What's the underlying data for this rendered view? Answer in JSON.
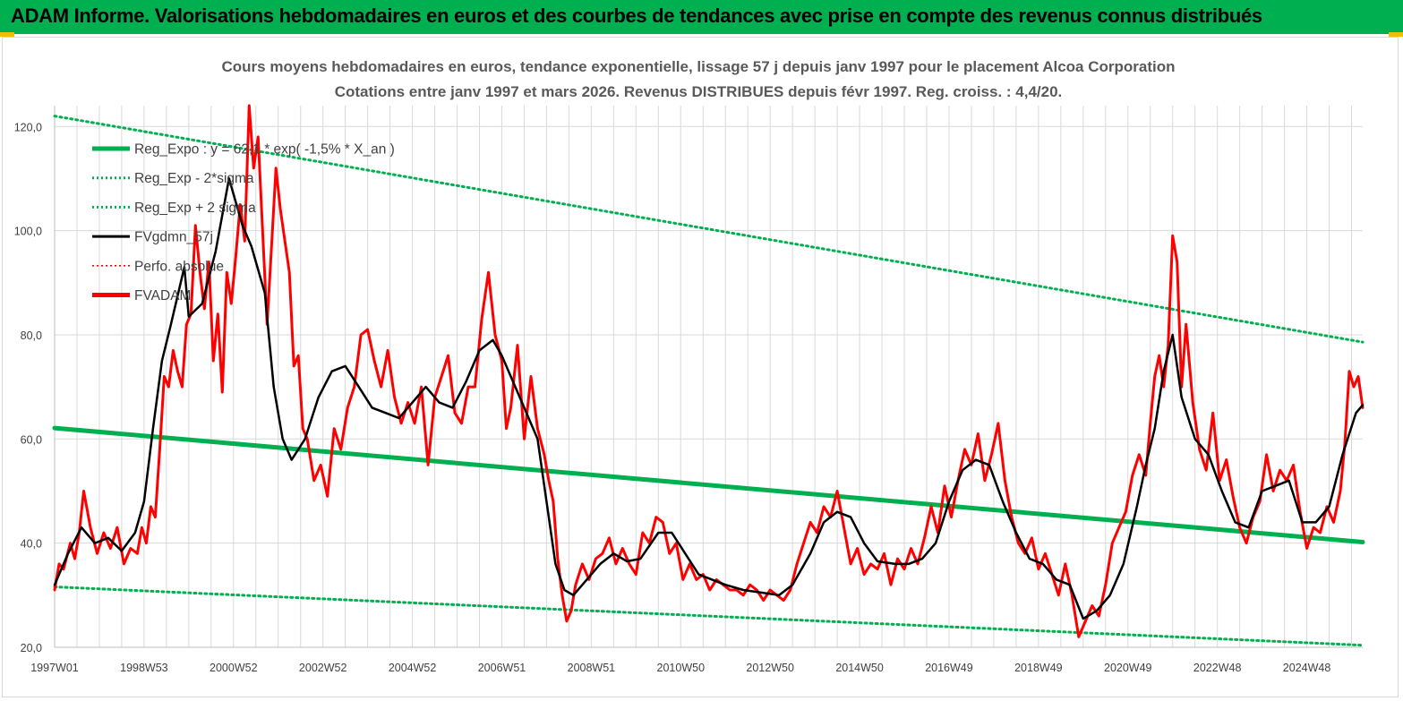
{
  "header": {
    "title": "ADAM Informe. Valorisations hebdomadaires en euros et des courbes de tendances avec prise en compte des revenus connus distribués"
  },
  "colors": {
    "banner": "#00b050",
    "trend": "#00b050",
    "sigma": "#00b050",
    "smooth": "#000000",
    "price": "#ff0000",
    "perf": "#ff0000",
    "grid": "#d9d9d9"
  },
  "chart_data": {
    "type": "line",
    "title": "Cours moyens hebdomadaires en euros, tendance exponentielle, lissage 57 j depuis janv 1997 pour le placement Alcoa Corporation",
    "subtitle": "Cotations entre janv 1997 et mars 2026. Revenus DISTRIBUES depuis févr 1997. Reg. croiss. : 4,4/20.",
    "xlabel": "",
    "ylabel": "",
    "x_range": [
      1997.0,
      2026.25
    ],
    "ylim": [
      20,
      124
    ],
    "y_ticks": [
      20,
      40,
      60,
      80,
      100,
      120
    ],
    "y_tick_labels": [
      "20,0",
      "40,0",
      "60,0",
      "80,0",
      "100,0",
      "120,0"
    ],
    "x_ticks": [
      1997.0,
      1999.0,
      2001.0,
      2003.0,
      2005.0,
      2007.0,
      2009.0,
      2011.0,
      2013.0,
      2015.0,
      2017.0,
      2019.0,
      2021.0,
      2023.0,
      2025.0
    ],
    "x_tick_labels": [
      "1997W01",
      "1998W53",
      "2000W52",
      "2002W52",
      "2004W52",
      "2006W51",
      "2008W51",
      "2010W50",
      "2012W50",
      "2014W50",
      "2016W49",
      "2018W49",
      "2020W49",
      "2022W48",
      "2024W48"
    ],
    "grid": "vertical and horizontal",
    "legend_position": "top-left",
    "legend": [
      {
        "label": "Reg_Expo : y = 62,1 * exp( -1,5% *  X_an )",
        "style": "thick-solid",
        "color": "#00b050"
      },
      {
        "label": "Reg_Exp - 2*sigma",
        "style": "dotted",
        "color": "#00b050"
      },
      {
        "label": "Reg_Exp + 2 sigma",
        "style": "dotted",
        "color": "#00b050"
      },
      {
        "label": "FVgdmn_57j",
        "style": "solid",
        "color": "#000000"
      },
      {
        "label": "Perfo. absolue",
        "style": "dotted",
        "color": "#ff0000"
      },
      {
        "label": "FVADAM",
        "style": "thick-solid",
        "color": "#ff0000"
      }
    ],
    "series": [
      {
        "name": "Reg_Expo : y = 62,1 * exp( -1,5% *  X_an )",
        "x": [
          1997.0,
          2026.25
        ],
        "values": [
          62.1,
          40.2
        ]
      },
      {
        "name": "Reg_Exp - 2*sigma",
        "x": [
          1997.0,
          2026.25
        ],
        "values": [
          31.6,
          20.4
        ]
      },
      {
        "name": "Reg_Exp + 2 sigma",
        "x": [
          1997.0,
          2026.25
        ],
        "values": [
          122.0,
          78.6
        ]
      },
      {
        "name": "FVgdmn_57j",
        "x": [
          1997.0,
          1997.3,
          1997.6,
          1997.9,
          1998.2,
          1998.5,
          1998.8,
          1999.0,
          1999.2,
          1999.4,
          1999.6,
          1999.9,
          2000.0,
          2000.3,
          2000.6,
          2000.9,
          2001.0,
          2001.2,
          2001.4,
          2001.7,
          2001.9,
          2002.1,
          2002.3,
          2002.6,
          2002.9,
          2003.2,
          2003.5,
          2003.8,
          2004.1,
          2004.4,
          2004.7,
          2005.0,
          2005.3,
          2005.6,
          2005.9,
          2006.2,
          2006.5,
          2006.8,
          2007.0,
          2007.2,
          2007.5,
          2007.8,
          2008.0,
          2008.2,
          2008.4,
          2008.6,
          2008.9,
          2009.2,
          2009.5,
          2009.8,
          2010.1,
          2010.5,
          2010.8,
          2011.1,
          2011.4,
          2011.7,
          2012.0,
          2012.4,
          2012.8,
          2013.2,
          2013.5,
          2013.9,
          2014.2,
          2014.5,
          2014.8,
          2015.1,
          2015.4,
          2015.8,
          2016.1,
          2016.4,
          2016.7,
          2017.0,
          2017.3,
          2017.6,
          2017.9,
          2018.2,
          2018.5,
          2018.8,
          2019.1,
          2019.4,
          2019.7,
          2020.0,
          2020.3,
          2020.6,
          2020.9,
          2021.2,
          2021.4,
          2021.6,
          2021.8,
          2022.0,
          2022.2,
          2022.5,
          2022.8,
          2023.1,
          2023.4,
          2023.7,
          2024.0,
          2024.3,
          2024.6,
          2024.9,
          2025.2,
          2025.5,
          2025.8,
          2026.1,
          2026.25
        ],
        "values": [
          32.0,
          38.0,
          43.0,
          40.0,
          41.0,
          38.5,
          42.0,
          48.0,
          62.0,
          75.0,
          82.0,
          93.0,
          83.5,
          86.0,
          96.0,
          110.0,
          107.0,
          101.0,
          97.0,
          88.0,
          70.0,
          60.0,
          56.0,
          60.0,
          68.0,
          73.0,
          74.0,
          70.0,
          66.0,
          65.0,
          64.0,
          67.0,
          70.0,
          67.0,
          66.0,
          71.0,
          77.0,
          79.0,
          76.0,
          72.0,
          66.0,
          60.0,
          48.0,
          36.0,
          31.0,
          30.0,
          33.0,
          36.0,
          38.0,
          36.5,
          37.0,
          42.0,
          42.0,
          38.0,
          34.0,
          33.0,
          32.0,
          31.0,
          30.5,
          30.0,
          32.0,
          38.0,
          44.0,
          46.0,
          45.0,
          40.0,
          36.5,
          36.0,
          36.0,
          37.0,
          40.0,
          48.0,
          54.0,
          56.0,
          55.0,
          48.0,
          42.0,
          37.0,
          36.0,
          33.0,
          32.0,
          25.5,
          27.0,
          30.0,
          36.0,
          47.0,
          55.0,
          62.0,
          73.0,
          80.0,
          68.0,
          60.0,
          57.0,
          50.0,
          44.0,
          43.0,
          50.0,
          51.0,
          52.0,
          44.0,
          44.0,
          47.0,
          57.0,
          65.0,
          66.5
        ]
      },
      {
        "name": "FVADAM",
        "x": [
          1997.0,
          1997.1,
          1997.2,
          1997.35,
          1997.45,
          1997.55,
          1997.65,
          1997.8,
          1997.95,
          1998.1,
          1998.25,
          1998.4,
          1998.55,
          1998.7,
          1998.85,
          1998.95,
          1999.05,
          1999.15,
          1999.25,
          1999.35,
          1999.45,
          1999.55,
          1999.65,
          1999.75,
          1999.85,
          1999.95,
          2000.05,
          2000.15,
          2000.25,
          2000.35,
          2000.45,
          2000.55,
          2000.65,
          2000.75,
          2000.85,
          2000.95,
          2001.05,
          2001.15,
          2001.25,
          2001.35,
          2001.45,
          2001.55,
          2001.65,
          2001.75,
          2001.85,
          2001.95,
          2002.05,
          2002.15,
          2002.25,
          2002.35,
          2002.45,
          2002.55,
          2002.65,
          2002.8,
          2002.95,
          2003.1,
          2003.25,
          2003.4,
          2003.55,
          2003.7,
          2003.85,
          2004.0,
          2004.15,
          2004.3,
          2004.45,
          2004.6,
          2004.75,
          2004.9,
          2005.05,
          2005.2,
          2005.35,
          2005.5,
          2005.65,
          2005.8,
          2005.95,
          2006.1,
          2006.25,
          2006.4,
          2006.55,
          2006.7,
          2006.85,
          2007.0,
          2007.1,
          2007.2,
          2007.35,
          2007.5,
          2007.65,
          2007.8,
          2007.95,
          2008.05,
          2008.15,
          2008.25,
          2008.35,
          2008.45,
          2008.55,
          2008.65,
          2008.8,
          2008.95,
          2009.1,
          2009.25,
          2009.4,
          2009.55,
          2009.7,
          2009.85,
          2010.0,
          2010.15,
          2010.3,
          2010.45,
          2010.6,
          2010.75,
          2010.9,
          2011.05,
          2011.2,
          2011.35,
          2011.5,
          2011.65,
          2011.8,
          2011.95,
          2012.1,
          2012.25,
          2012.4,
          2012.55,
          2012.7,
          2012.85,
          2013.0,
          2013.15,
          2013.3,
          2013.45,
          2013.6,
          2013.75,
          2013.9,
          2014.05,
          2014.2,
          2014.35,
          2014.5,
          2014.65,
          2014.8,
          2014.95,
          2015.1,
          2015.25,
          2015.4,
          2015.55,
          2015.7,
          2015.85,
          2016.0,
          2016.15,
          2016.3,
          2016.45,
          2016.6,
          2016.75,
          2016.9,
          2017.05,
          2017.2,
          2017.35,
          2017.5,
          2017.65,
          2017.8,
          2017.95,
          2018.1,
          2018.25,
          2018.4,
          2018.55,
          2018.7,
          2018.85,
          2019.0,
          2019.15,
          2019.3,
          2019.45,
          2019.6,
          2019.75,
          2019.9,
          2020.05,
          2020.2,
          2020.35,
          2020.5,
          2020.65,
          2020.8,
          2020.95,
          2021.1,
          2021.25,
          2021.4,
          2021.5,
          2021.6,
          2021.7,
          2021.8,
          2021.9,
          2022.0,
          2022.1,
          2022.2,
          2022.3,
          2022.45,
          2022.6,
          2022.75,
          2022.9,
          2023.05,
          2023.2,
          2023.35,
          2023.5,
          2023.65,
          2023.8,
          2023.95,
          2024.1,
          2024.25,
          2024.4,
          2024.55,
          2024.7,
          2024.85,
          2025.0,
          2025.15,
          2025.3,
          2025.45,
          2025.6,
          2025.75,
          2025.85,
          2025.95,
          2026.05,
          2026.15,
          2026.25
        ],
        "values": [
          31.0,
          36.0,
          35.0,
          40.0,
          37.0,
          42.0,
          50.0,
          43.0,
          38.0,
          42.0,
          39.0,
          43.0,
          36.0,
          39.0,
          38.0,
          43.0,
          40.0,
          47.0,
          45.0,
          58.0,
          72.0,
          70.0,
          77.0,
          73.0,
          70.0,
          82.0,
          84.0,
          101.0,
          92.0,
          85.0,
          94.0,
          75.0,
          84.0,
          69.0,
          92.0,
          86.0,
          95.0,
          105.0,
          98.0,
          124.0,
          112.0,
          118.0,
          100.0,
          82.0,
          97.0,
          112.0,
          104.0,
          98.0,
          92.0,
          74.0,
          76.0,
          62.0,
          60.0,
          52.0,
          55.0,
          49.0,
          62.0,
          58.0,
          66.0,
          70.0,
          80.0,
          81.0,
          75.0,
          70.0,
          77.0,
          68.0,
          63.0,
          67.0,
          63.0,
          70.0,
          55.0,
          68.0,
          72.0,
          76.0,
          65.0,
          63.0,
          70.0,
          70.0,
          83.0,
          92.0,
          80.0,
          75.0,
          62.0,
          66.0,
          78.0,
          60.0,
          72.0,
          62.0,
          57.0,
          52.0,
          48.0,
          37.0,
          30.0,
          25.0,
          27.0,
          32.0,
          36.0,
          33.0,
          37.0,
          38.0,
          41.0,
          36.0,
          39.0,
          36.0,
          34.0,
          42.0,
          40.0,
          45.0,
          44.0,
          38.0,
          40.0,
          33.0,
          36.0,
          33.0,
          34.0,
          31.0,
          33.0,
          32.0,
          31.0,
          31.0,
          30.0,
          32.0,
          31.0,
          29.0,
          31.0,
          30.0,
          29.0,
          31.0,
          36.0,
          40.0,
          44.0,
          42.0,
          47.0,
          45.0,
          50.0,
          43.0,
          36.0,
          39.0,
          34.0,
          36.0,
          35.0,
          38.0,
          32.0,
          37.0,
          35.0,
          39.0,
          36.0,
          41.0,
          47.0,
          42.0,
          51.0,
          45.0,
          52.0,
          58.0,
          55.0,
          61.0,
          52.0,
          57.0,
          63.0,
          52.0,
          45.0,
          40.0,
          38.0,
          41.0,
          35.0,
          38.0,
          34.0,
          30.0,
          36.0,
          30.0,
          22.0,
          25.0,
          28.0,
          26.0,
          32.0,
          40.0,
          43.0,
          46.0,
          53.0,
          57.0,
          53.0,
          63.0,
          72.0,
          76.0,
          70.0,
          78.0,
          99.0,
          94.0,
          70.0,
          82.0,
          67.0,
          58.0,
          54.0,
          65.0,
          52.0,
          56.0,
          49.0,
          43.0,
          40.0,
          45.0,
          48.0,
          57.0,
          50.0,
          54.0,
          52.0,
          55.0,
          46.0,
          39.0,
          43.0,
          42.0,
          47.0,
          44.0,
          50.0,
          59.0,
          73.0,
          70.0,
          72.0,
          66.0
        ]
      }
    ]
  }
}
